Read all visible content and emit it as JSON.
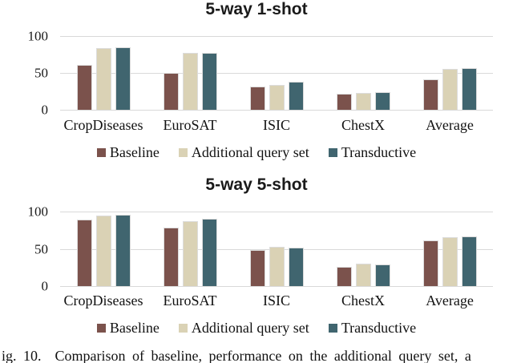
{
  "page": {
    "background": "#ffffff",
    "caption": "ig. 10.  Comparison of baseline, performance on the additional query set, a"
  },
  "palette": {
    "baseline": "#7B524C",
    "additional_query_set": "#DAD2B5",
    "transductive": "#40656F",
    "gridline": "#D9D9D9",
    "bar_border": "#DCDCDC",
    "text": "#111111"
  },
  "chart_data": [
    {
      "type": "bar",
      "title": "5-way 1-shot",
      "categories": [
        "CropDiseases",
        "EuroSAT",
        "ISIC",
        "ChestX",
        "Average"
      ],
      "series": [
        {
          "name": "Baseline",
          "color": "#7B524C",
          "values": [
            61,
            50,
            31,
            22,
            41
          ]
        },
        {
          "name": "Additional query set",
          "color": "#DAD2B5",
          "values": [
            84,
            77,
            34,
            23,
            55
          ]
        },
        {
          "name": "Transductive",
          "color": "#40656F",
          "values": [
            85,
            77,
            38,
            24,
            56
          ]
        }
      ],
      "yticks": [
        0,
        50,
        100
      ],
      "ylim": [
        0,
        100
      ],
      "grid": true,
      "legend_position": "bottom"
    },
    {
      "type": "bar",
      "title": "5-way 5-shot",
      "categories": [
        "CropDiseases",
        "EuroSAT",
        "ISIC",
        "ChestX",
        "Average"
      ],
      "series": [
        {
          "name": "Baseline",
          "color": "#7B524C",
          "values": [
            89,
            79,
            48,
            26,
            61
          ]
        },
        {
          "name": "Additional query set",
          "color": "#DAD2B5",
          "values": [
            95,
            87,
            53,
            30,
            66
          ]
        },
        {
          "name": "Transductive",
          "color": "#40656F",
          "values": [
            96,
            90,
            52,
            29,
            67
          ]
        }
      ],
      "yticks": [
        0,
        50,
        100
      ],
      "ylim": [
        0,
        100
      ],
      "grid": true,
      "legend_position": "bottom"
    }
  ]
}
